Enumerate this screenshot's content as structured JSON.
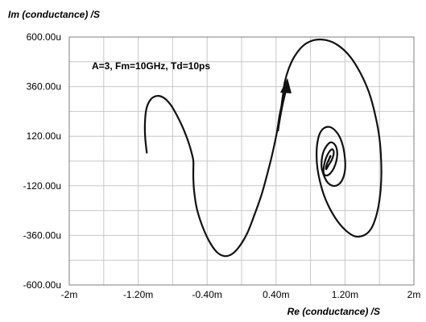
{
  "chart_data": {
    "type": "line",
    "title": "",
    "xlabel": "Re (conductance) /S",
    "ylabel": "Im (conductance) /S",
    "xlim": [
      -2,
      2
    ],
    "ylim": [
      -600,
      600
    ],
    "x_unit": "mS",
    "y_unit": "uS",
    "x_ticks": [
      -2,
      -1.2,
      -0.4,
      0.4,
      1.2,
      2
    ],
    "x_tick_labels": [
      "-2m",
      "-1.20m",
      "-0.40m",
      "0.40m",
      "1.20m",
      "2m"
    ],
    "y_ticks": [
      600,
      360,
      120,
      -120,
      -360,
      -600
    ],
    "y_tick_labels": [
      "600.00u",
      "360.00u",
      "120.00u",
      "-120.00u",
      "-360.00u",
      "-600.00u"
    ],
    "grid": true,
    "annotation": "A=3, Fm=10GHz, Td=10ps",
    "series": [
      {
        "x": [
          -1.1,
          -1.12,
          -1.12,
          -1.1,
          -1.05,
          -0.98,
          -0.9,
          -0.82,
          -0.75,
          -0.68,
          -0.62,
          -0.58,
          -0.56,
          -0.56,
          -0.56,
          -0.55,
          -0.52,
          -0.46,
          -0.38,
          -0.29,
          -0.2,
          -0.11,
          -0.02,
          0.07,
          0.15,
          0.23,
          0.3,
          0.36,
          0.41,
          0.44,
          0.46,
          0.47,
          0.48,
          0.5,
          0.55,
          0.62,
          0.72,
          0.84,
          0.98,
          1.12,
          1.26,
          1.38,
          1.48,
          1.55,
          1.6,
          1.62,
          1.62,
          1.6,
          1.56,
          1.5,
          1.42,
          1.32,
          1.22,
          1.12,
          1.03,
          0.96,
          0.91,
          0.88,
          0.87,
          0.88,
          0.91,
          0.96,
          1.02,
          1.08,
          1.14,
          1.18,
          1.2,
          1.2,
          1.17,
          1.12,
          1.06,
          1.0,
          0.96,
          0.93,
          0.93,
          0.95,
          0.99,
          1.03,
          1.07,
          1.1,
          1.11,
          1.1,
          1.07,
          1.03,
          0.99,
          0.96,
          0.95,
          0.96,
          0.98,
          1.01,
          1.04,
          1.06,
          1.07,
          1.06,
          1.04,
          1.01,
          0.99,
          0.98,
          0.98,
          0.99,
          1.01,
          1.03,
          1.03,
          1.02,
          1.01
        ],
        "y": [
          40,
          120,
          200,
          260,
          300,
          315,
          305,
          270,
          220,
          160,
          95,
          40,
          0,
          -40,
          -85,
          -150,
          -230,
          -310,
          -385,
          -440,
          -460,
          -450,
          -410,
          -345,
          -260,
          -165,
          -60,
          40,
          140,
          220,
          260,
          290,
          320,
          380,
          450,
          510,
          560,
          585,
          585,
          560,
          505,
          425,
          330,
          225,
          110,
          0,
          -100,
          -190,
          -270,
          -330,
          -360,
          -365,
          -340,
          -295,
          -235,
          -170,
          -100,
          -35,
          30,
          90,
          135,
          160,
          165,
          150,
          115,
          65,
          10,
          -45,
          -90,
          -115,
          -120,
          -105,
          -75,
          -35,
          5,
          45,
          75,
          90,
          85,
          65,
          35,
          0,
          -35,
          -60,
          -70,
          -65,
          -45,
          -15,
          15,
          40,
          55,
          55,
          40,
          20,
          0,
          -20,
          -35,
          -40,
          -30,
          -15,
          5,
          20,
          25,
          15,
          0
        ]
      }
    ]
  }
}
